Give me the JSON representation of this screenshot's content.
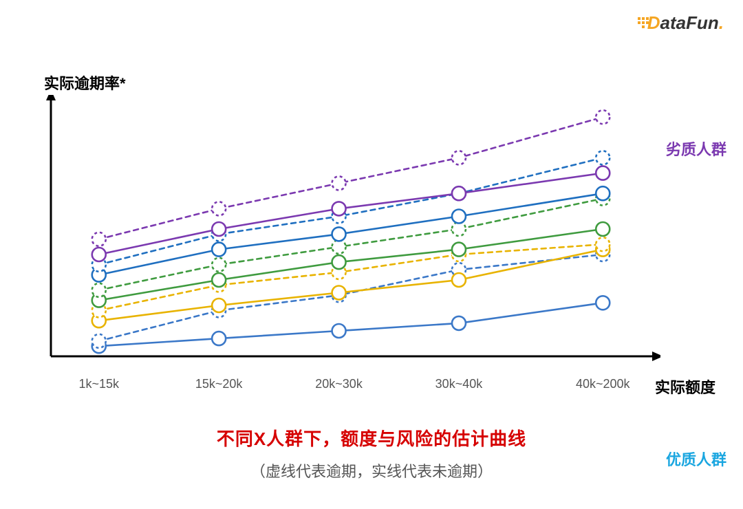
{
  "logo": {
    "d": "D",
    "rest": "ataFun",
    "dot": "."
  },
  "chart": {
    "type": "line",
    "y_title": "实际逾期率*",
    "x_title": "实际额度",
    "subtitle_red": "不同X人群下，额度与风险的估计曲线",
    "subtitle_red_color": "#d60000",
    "subtitle_gray": "（虚线代表逾期，实线代表未逾期）",
    "background_color": "#ffffff",
    "axis_color": "#000000",
    "axis_width": 3,
    "xlim": [
      0,
      100
    ],
    "ylim": [
      0,
      100
    ],
    "x_categories": [
      "1k~15k",
      "15k~20k",
      "20k~30k",
      "30k~40k",
      "40k~200k"
    ],
    "x_positions": [
      8,
      28,
      48,
      68,
      92
    ],
    "marker_radius": 10,
    "marker_fill": "#ffffff",
    "line_width": 2.6,
    "dash_pattern": "7,6",
    "series": [
      {
        "name": "blue-solid",
        "color": "#3b78c8",
        "style": "solid",
        "y": [
          4,
          7,
          10,
          13,
          21
        ]
      },
      {
        "name": "blue-dashed",
        "color": "#3b78c8",
        "style": "dashed",
        "y": [
          6,
          18,
          24,
          34,
          40
        ]
      },
      {
        "name": "yellow-solid",
        "color": "#e8b300",
        "style": "solid",
        "y": [
          14,
          20,
          25,
          30,
          42
        ]
      },
      {
        "name": "yellow-dashed",
        "color": "#e8b300",
        "style": "dashed",
        "y": [
          18,
          28,
          33,
          40,
          44
        ]
      },
      {
        "name": "green-solid",
        "color": "#3f9b3f",
        "style": "solid",
        "y": [
          22,
          30,
          37,
          42,
          50
        ]
      },
      {
        "name": "green-dashed",
        "color": "#3f9b3f",
        "style": "dashed",
        "y": [
          26,
          36,
          43,
          50,
          62
        ]
      },
      {
        "name": "blue2-solid",
        "color": "#1f6fc0",
        "style": "solid",
        "y": [
          32,
          42,
          48,
          55,
          64
        ]
      },
      {
        "name": "blue2-dashed",
        "color": "#1f6fc0",
        "style": "dashed",
        "y": [
          36,
          48,
          55,
          64,
          78
        ]
      },
      {
        "name": "purple-solid",
        "color": "#7b39b0",
        "style": "solid",
        "y": [
          40,
          50,
          58,
          64,
          72
        ]
      },
      {
        "name": "purple-dashed",
        "color": "#7b39b0",
        "style": "dashed",
        "y": [
          46,
          58,
          68,
          78,
          94
        ]
      }
    ],
    "side_top_label": "劣质人群",
    "side_top_color": "#7b39b0",
    "side_bottom_label": "优质人群",
    "side_bottom_color": "#1aa6e0",
    "side_arrow_color": "#1aa6e0"
  }
}
